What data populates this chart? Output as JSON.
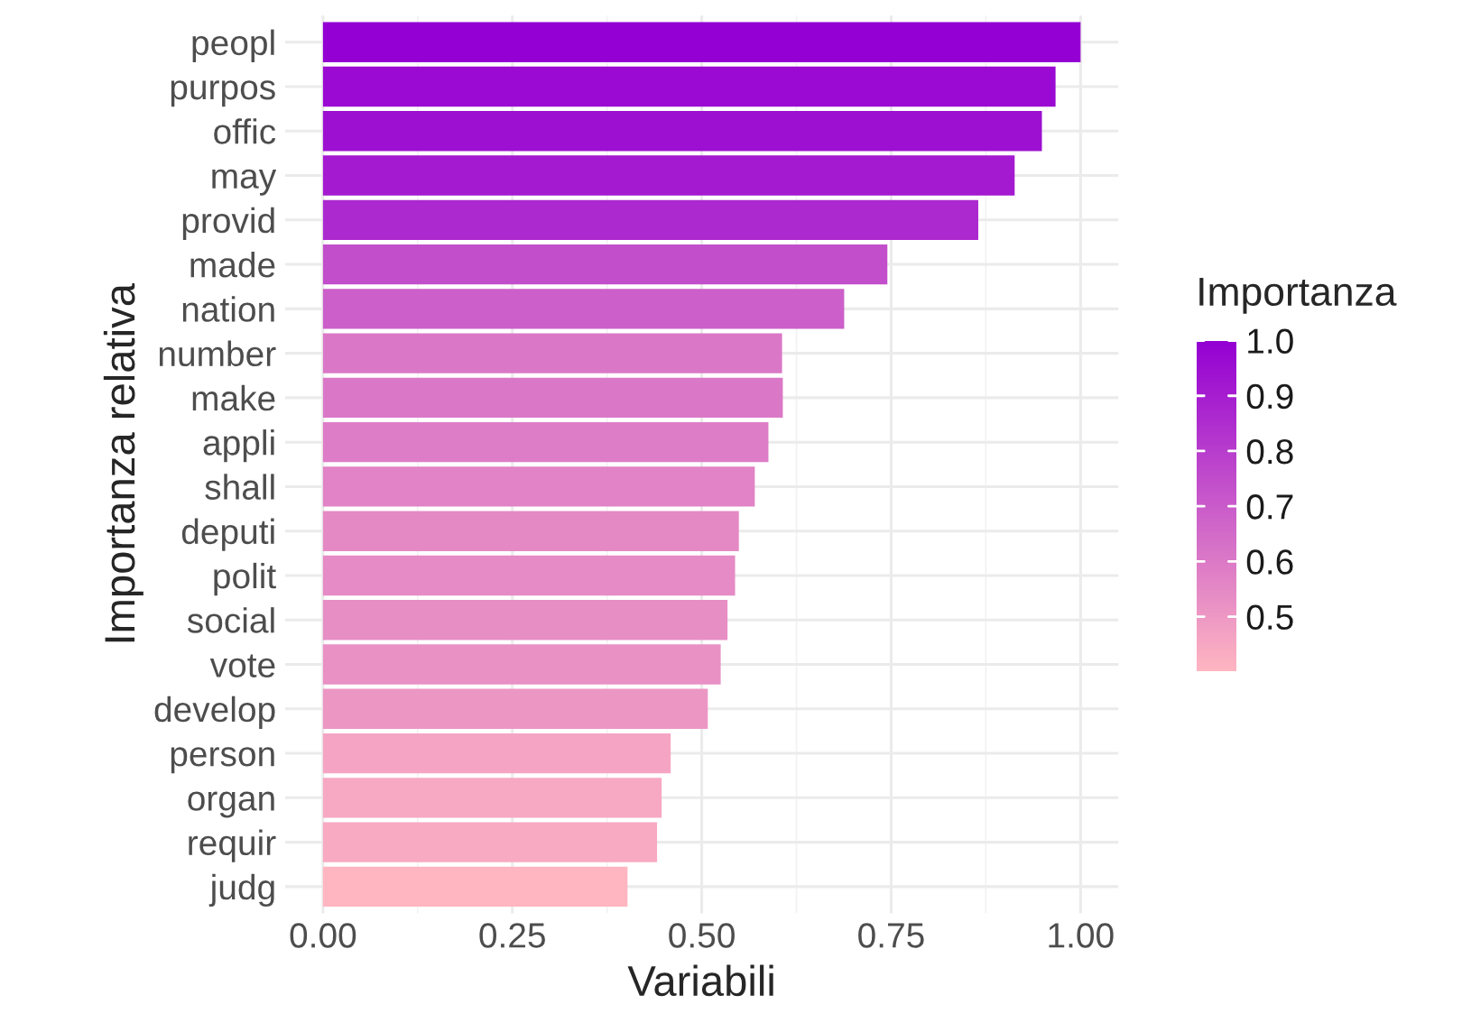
{
  "chart_data": {
    "type": "bar",
    "orientation": "horizontal",
    "xlabel": "Variabili",
    "ylabel": "Importanza relativa",
    "clabel": "Importanza",
    "categories": [
      "peopl",
      "purpos",
      "offic",
      "may",
      "provid",
      "made",
      "nation",
      "number",
      "make",
      "appli",
      "shall",
      "deputi",
      "polit",
      "social",
      "vote",
      "develop",
      "person",
      "organ",
      "requir",
      "judg"
    ],
    "values": [
      1.0,
      0.967,
      0.949,
      0.913,
      0.865,
      0.745,
      0.688,
      0.606,
      0.607,
      0.588,
      0.57,
      0.549,
      0.544,
      0.534,
      0.525,
      0.508,
      0.459,
      0.447,
      0.441,
      0.402
    ],
    "colors": [
      "#9400d3",
      "#9a0ad2",
      "#9d10d1",
      "#a41ad0",
      "#ac29cf",
      "#c24ecb",
      "#cc5fca",
      "#da78c7",
      "#da78c7",
      "#de7dc7",
      "#e183c6",
      "#e589c5",
      "#e68bc5",
      "#e78ec5",
      "#e990c5",
      "#ec96c4",
      "#f5a5c3",
      "#f7a8c2",
      "#f8aac2",
      "#ffb6c1"
    ],
    "xlim": [
      -0.05,
      1.05
    ],
    "xticks": [
      {
        "value": 0,
        "label": "0.00"
      },
      {
        "value": 0.25,
        "label": "0.25"
      },
      {
        "value": 0.5,
        "label": "0.50"
      },
      {
        "value": 0.75,
        "label": "0.75"
      },
      {
        "value": 1.0,
        "label": "1.00"
      }
    ],
    "clim": [
      0.402,
      1.0
    ],
    "cticks": [
      {
        "value": 0.5,
        "label": "0.5"
      },
      {
        "value": 0.6,
        "label": "0.6"
      },
      {
        "value": 0.7,
        "label": "0.7"
      },
      {
        "value": 0.8,
        "label": "0.8"
      },
      {
        "value": 0.9,
        "label": "0.9"
      },
      {
        "value": 1.0,
        "label": "1.0"
      }
    ],
    "grid": true
  }
}
